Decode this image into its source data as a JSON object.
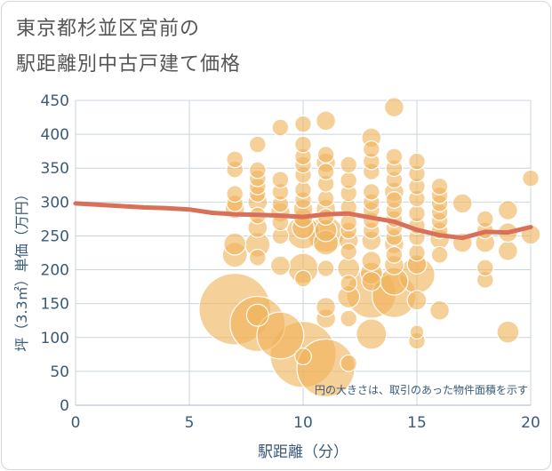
{
  "chart_data": {
    "type": "scatter",
    "title_lines": [
      "東京都杉並区宮前の",
      "駅距離別中古戸建て価格"
    ],
    "xlabel": "駅距離（分）",
    "ylabel": "坪（3.3㎡）単価（万円）",
    "xlim": [
      0,
      20
    ],
    "ylim": [
      0,
      450
    ],
    "xticks": [
      "0",
      "5",
      "10",
      "15",
      "20"
    ],
    "yticks": [
      "0",
      "50",
      "100",
      "150",
      "200",
      "250",
      "300",
      "350",
      "400",
      "450"
    ],
    "annotation": "円の大きさは、取引のあった物件面積を示す",
    "grid": true,
    "colors": {
      "bubble": "#f0b35a",
      "trend": "#d9705a",
      "text": "#3a5a78",
      "grid": "#c8d4e0"
    },
    "trend_line": {
      "x": [
        0,
        1,
        2,
        3,
        4,
        5,
        6,
        7,
        8,
        9,
        10,
        11,
        12,
        13,
        14,
        15,
        16,
        17,
        18,
        19,
        20
      ],
      "y": [
        298,
        296,
        294,
        292,
        291,
        289,
        284,
        282,
        281,
        280,
        278,
        282,
        283,
        277,
        271,
        259,
        251,
        247,
        256,
        255,
        263
      ]
    },
    "bubbles": [
      {
        "x": 7,
        "y": 142,
        "s": 26
      },
      {
        "x": 7,
        "y": 222,
        "s": 9
      },
      {
        "x": 7,
        "y": 238,
        "s": 8
      },
      {
        "x": 7,
        "y": 290,
        "s": 7
      },
      {
        "x": 7,
        "y": 298,
        "s": 6
      },
      {
        "x": 7,
        "y": 312,
        "s": 6
      },
      {
        "x": 7,
        "y": 348,
        "s": 6
      },
      {
        "x": 7,
        "y": 363,
        "s": 6
      },
      {
        "x": 8,
        "y": 120,
        "s": 20
      },
      {
        "x": 8,
        "y": 133,
        "s": 8
      },
      {
        "x": 8,
        "y": 218,
        "s": 6
      },
      {
        "x": 8,
        "y": 237,
        "s": 9
      },
      {
        "x": 8,
        "y": 262,
        "s": 7
      },
      {
        "x": 8,
        "y": 280,
        "s": 6
      },
      {
        "x": 8,
        "y": 300,
        "s": 7
      },
      {
        "x": 8,
        "y": 312,
        "s": 6
      },
      {
        "x": 8,
        "y": 323,
        "s": 6
      },
      {
        "x": 8,
        "y": 335,
        "s": 6
      },
      {
        "x": 8,
        "y": 347,
        "s": 6
      },
      {
        "x": 8,
        "y": 385,
        "s": 6
      },
      {
        "x": 9,
        "y": 103,
        "s": 17
      },
      {
        "x": 9,
        "y": 206,
        "s": 7
      },
      {
        "x": 9,
        "y": 250,
        "s": 6
      },
      {
        "x": 9,
        "y": 270,
        "s": 6
      },
      {
        "x": 9,
        "y": 285,
        "s": 7
      },
      {
        "x": 9,
        "y": 297,
        "s": 6
      },
      {
        "x": 9,
        "y": 315,
        "s": 6
      },
      {
        "x": 9,
        "y": 333,
        "s": 6
      },
      {
        "x": 9,
        "y": 410,
        "s": 6
      },
      {
        "x": 10,
        "y": 75,
        "s": 24
      },
      {
        "x": 10,
        "y": 72,
        "s": 6
      },
      {
        "x": 10,
        "y": 187,
        "s": 6
      },
      {
        "x": 10,
        "y": 202,
        "s": 11
      },
      {
        "x": 10,
        "y": 255,
        "s": 12
      },
      {
        "x": 10,
        "y": 262,
        "s": 8
      },
      {
        "x": 10,
        "y": 277,
        "s": 7
      },
      {
        "x": 10,
        "y": 290,
        "s": 7
      },
      {
        "x": 10,
        "y": 303,
        "s": 6
      },
      {
        "x": 10,
        "y": 318,
        "s": 6
      },
      {
        "x": 10,
        "y": 340,
        "s": 6
      },
      {
        "x": 10,
        "y": 355,
        "s": 6
      },
      {
        "x": 10,
        "y": 367,
        "s": 6
      },
      {
        "x": 10,
        "y": 385,
        "s": 6
      },
      {
        "x": 10,
        "y": 415,
        "s": 6
      },
      {
        "x": 11,
        "y": 55,
        "s": 21
      },
      {
        "x": 11,
        "y": 128,
        "s": 7
      },
      {
        "x": 11,
        "y": 145,
        "s": 7
      },
      {
        "x": 11,
        "y": 202,
        "s": 6
      },
      {
        "x": 11,
        "y": 240,
        "s": 9
      },
      {
        "x": 11,
        "y": 252,
        "s": 13
      },
      {
        "x": 11,
        "y": 258,
        "s": 8
      },
      {
        "x": 11,
        "y": 278,
        "s": 6
      },
      {
        "x": 11,
        "y": 290,
        "s": 7
      },
      {
        "x": 11,
        "y": 305,
        "s": 6
      },
      {
        "x": 11,
        "y": 327,
        "s": 6
      },
      {
        "x": 11,
        "y": 345,
        "s": 6
      },
      {
        "x": 11,
        "y": 358,
        "s": 7
      },
      {
        "x": 11,
        "y": 370,
        "s": 6
      },
      {
        "x": 11,
        "y": 420,
        "s": 7
      },
      {
        "x": 12,
        "y": 62,
        "s": 6
      },
      {
        "x": 12,
        "y": 128,
        "s": 6
      },
      {
        "x": 12,
        "y": 160,
        "s": 8
      },
      {
        "x": 12,
        "y": 180,
        "s": 6
      },
      {
        "x": 12,
        "y": 202,
        "s": 8
      },
      {
        "x": 12,
        "y": 227,
        "s": 6
      },
      {
        "x": 12,
        "y": 243,
        "s": 7
      },
      {
        "x": 12,
        "y": 258,
        "s": 6
      },
      {
        "x": 12,
        "y": 270,
        "s": 6
      },
      {
        "x": 12,
        "y": 292,
        "s": 6
      },
      {
        "x": 12,
        "y": 313,
        "s": 6
      },
      {
        "x": 12,
        "y": 332,
        "s": 6
      },
      {
        "x": 12,
        "y": 355,
        "s": 6
      },
      {
        "x": 13,
        "y": 105,
        "s": 11
      },
      {
        "x": 13,
        "y": 165,
        "s": 18
      },
      {
        "x": 13,
        "y": 183,
        "s": 7
      },
      {
        "x": 13,
        "y": 195,
        "s": 8
      },
      {
        "x": 13,
        "y": 213,
        "s": 7
      },
      {
        "x": 13,
        "y": 243,
        "s": 7
      },
      {
        "x": 13,
        "y": 258,
        "s": 6
      },
      {
        "x": 13,
        "y": 273,
        "s": 6
      },
      {
        "x": 13,
        "y": 288,
        "s": 6
      },
      {
        "x": 13,
        "y": 300,
        "s": 6
      },
      {
        "x": 13,
        "y": 315,
        "s": 6
      },
      {
        "x": 13,
        "y": 345,
        "s": 6
      },
      {
        "x": 13,
        "y": 360,
        "s": 6
      },
      {
        "x": 13,
        "y": 378,
        "s": 6
      },
      {
        "x": 13,
        "y": 395,
        "s": 7
      },
      {
        "x": 14,
        "y": 162,
        "s": 16
      },
      {
        "x": 14,
        "y": 183,
        "s": 10
      },
      {
        "x": 14,
        "y": 207,
        "s": 7
      },
      {
        "x": 14,
        "y": 222,
        "s": 6
      },
      {
        "x": 14,
        "y": 238,
        "s": 7
      },
      {
        "x": 14,
        "y": 248,
        "s": 6
      },
      {
        "x": 14,
        "y": 262,
        "s": 6
      },
      {
        "x": 14,
        "y": 275,
        "s": 6
      },
      {
        "x": 14,
        "y": 288,
        "s": 6
      },
      {
        "x": 14,
        "y": 303,
        "s": 6
      },
      {
        "x": 14,
        "y": 315,
        "s": 7
      },
      {
        "x": 14,
        "y": 333,
        "s": 6
      },
      {
        "x": 14,
        "y": 350,
        "s": 6
      },
      {
        "x": 14,
        "y": 367,
        "s": 6
      },
      {
        "x": 14,
        "y": 440,
        "s": 7
      },
      {
        "x": 15,
        "y": 95,
        "s": 6
      },
      {
        "x": 15,
        "y": 108,
        "s": 5
      },
      {
        "x": 15,
        "y": 155,
        "s": 7
      },
      {
        "x": 15,
        "y": 192,
        "s": 13
      },
      {
        "x": 15,
        "y": 208,
        "s": 7
      },
      {
        "x": 15,
        "y": 225,
        "s": 6
      },
      {
        "x": 15,
        "y": 248,
        "s": 6
      },
      {
        "x": 15,
        "y": 265,
        "s": 6
      },
      {
        "x": 15,
        "y": 283,
        "s": 6
      },
      {
        "x": 15,
        "y": 305,
        "s": 6
      },
      {
        "x": 15,
        "y": 323,
        "s": 6
      },
      {
        "x": 15,
        "y": 342,
        "s": 6
      },
      {
        "x": 15,
        "y": 360,
        "s": 6
      },
      {
        "x": 16,
        "y": 140,
        "s": 7
      },
      {
        "x": 16,
        "y": 222,
        "s": 6
      },
      {
        "x": 16,
        "y": 245,
        "s": 7
      },
      {
        "x": 16,
        "y": 258,
        "s": 6
      },
      {
        "x": 16,
        "y": 272,
        "s": 6
      },
      {
        "x": 16,
        "y": 285,
        "s": 6
      },
      {
        "x": 16,
        "y": 298,
        "s": 6
      },
      {
        "x": 16,
        "y": 310,
        "s": 6
      },
      {
        "x": 16,
        "y": 323,
        "s": 6
      },
      {
        "x": 17,
        "y": 240,
        "s": 7
      },
      {
        "x": 17,
        "y": 298,
        "s": 7
      },
      {
        "x": 18,
        "y": 185,
        "s": 6
      },
      {
        "x": 18,
        "y": 203,
        "s": 6
      },
      {
        "x": 18,
        "y": 240,
        "s": 7
      },
      {
        "x": 18,
        "y": 258,
        "s": 6
      },
      {
        "x": 18,
        "y": 275,
        "s": 6
      },
      {
        "x": 19,
        "y": 108,
        "s": 8
      },
      {
        "x": 19,
        "y": 228,
        "s": 7
      },
      {
        "x": 19,
        "y": 255,
        "s": 7
      },
      {
        "x": 19,
        "y": 288,
        "s": 7
      },
      {
        "x": 20,
        "y": 252,
        "s": 7
      },
      {
        "x": 20,
        "y": 335,
        "s": 6
      }
    ]
  }
}
